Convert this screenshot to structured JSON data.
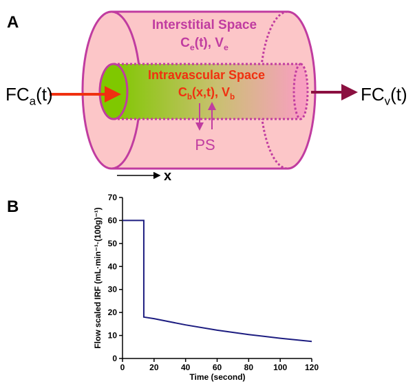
{
  "diagram": {
    "label": "A",
    "interstitial_title": "Interstitial Space",
    "interstitial_vars": [
      {
        "text": "C"
      },
      {
        "sub": "e"
      },
      {
        "text": "(t), V"
      },
      {
        "sub": "e"
      }
    ],
    "intravascular_title": "Intravascular Space",
    "intravascular_vars": [
      {
        "text": "C"
      },
      {
        "sub": "b"
      },
      {
        "text": "(x,t), V"
      },
      {
        "sub": "b"
      }
    ],
    "exchange": "PS",
    "inflow": [
      {
        "text": "FC"
      },
      {
        "sub": "a"
      },
      {
        "text": "(t)"
      }
    ],
    "outflow": [
      {
        "text": "FC"
      },
      {
        "sub": "v"
      },
      {
        "text": "(t)"
      }
    ],
    "axis": "x"
  },
  "chart_label": "B",
  "chart_data": {
    "type": "line",
    "xlabel": "Time (second)",
    "ylabel": "Flow scaled IRF (mL·min⁻¹·(100g)⁻¹)",
    "x": [
      0,
      13.5,
      13.5,
      20,
      40,
      60,
      80,
      100,
      120
    ],
    "values": [
      60,
      60,
      18,
      17.3,
      14.6,
      12.3,
      10.4,
      8.8,
      7.4
    ],
    "color": "#1c1c80",
    "xlim": [
      0,
      120
    ],
    "ylim": [
      0,
      70
    ],
    "xticks": [
      0,
      20,
      40,
      60,
      80,
      100,
      120
    ],
    "yticks": [
      0,
      10,
      20,
      30,
      40,
      50,
      60,
      70
    ]
  }
}
